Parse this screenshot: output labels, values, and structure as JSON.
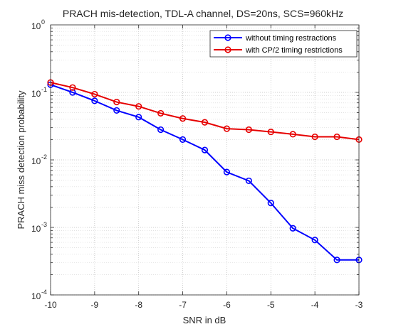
{
  "chart_data": {
    "type": "line",
    "title": "PRACH mis-detection, TDL-A channel, DS=20ns, SCS=960kHz",
    "xlabel": "SNR in dB",
    "ylabel": "PRACH miss detection probability",
    "x": [
      -10,
      -9.5,
      -9,
      -8.5,
      -8,
      -7.5,
      -7,
      -6.5,
      -6,
      -5.5,
      -5,
      -4.5,
      -4,
      -3.5,
      -3
    ],
    "xlim": [
      -10,
      -3
    ],
    "ylim": [
      0.0001,
      1
    ],
    "yscale": "log",
    "grid": "on (major and minor, dotted)",
    "legend_location": "top-right",
    "x_tick_labels": [
      "-10",
      "-9",
      "-8",
      "-7",
      "-6",
      "-5",
      "-4",
      "-3"
    ],
    "y_tick_labels": [
      {
        "base": "10",
        "exp": "0"
      },
      {
        "base": "10",
        "exp": "-1"
      },
      {
        "base": "10",
        "exp": "-2"
      },
      {
        "base": "10",
        "exp": "-3"
      },
      {
        "base": "10",
        "exp": "-4"
      }
    ],
    "series": [
      {
        "name": "without timing restractions",
        "color": "#0000ff",
        "marker": "circle",
        "values": [
          0.13,
          0.1,
          0.075,
          0.054,
          0.043,
          0.028,
          0.02,
          0.014,
          0.0066,
          0.0049,
          0.0023,
          0.00097,
          0.00065,
          0.00033,
          0.00033
        ]
      },
      {
        "name": "with CP/2 timing restrictions",
        "color": "#e60000",
        "marker": "circle",
        "values": [
          0.14,
          0.118,
          0.094,
          0.072,
          0.062,
          0.049,
          0.041,
          0.036,
          0.029,
          0.028,
          0.026,
          0.024,
          0.022,
          0.022,
          0.02
        ]
      }
    ]
  }
}
